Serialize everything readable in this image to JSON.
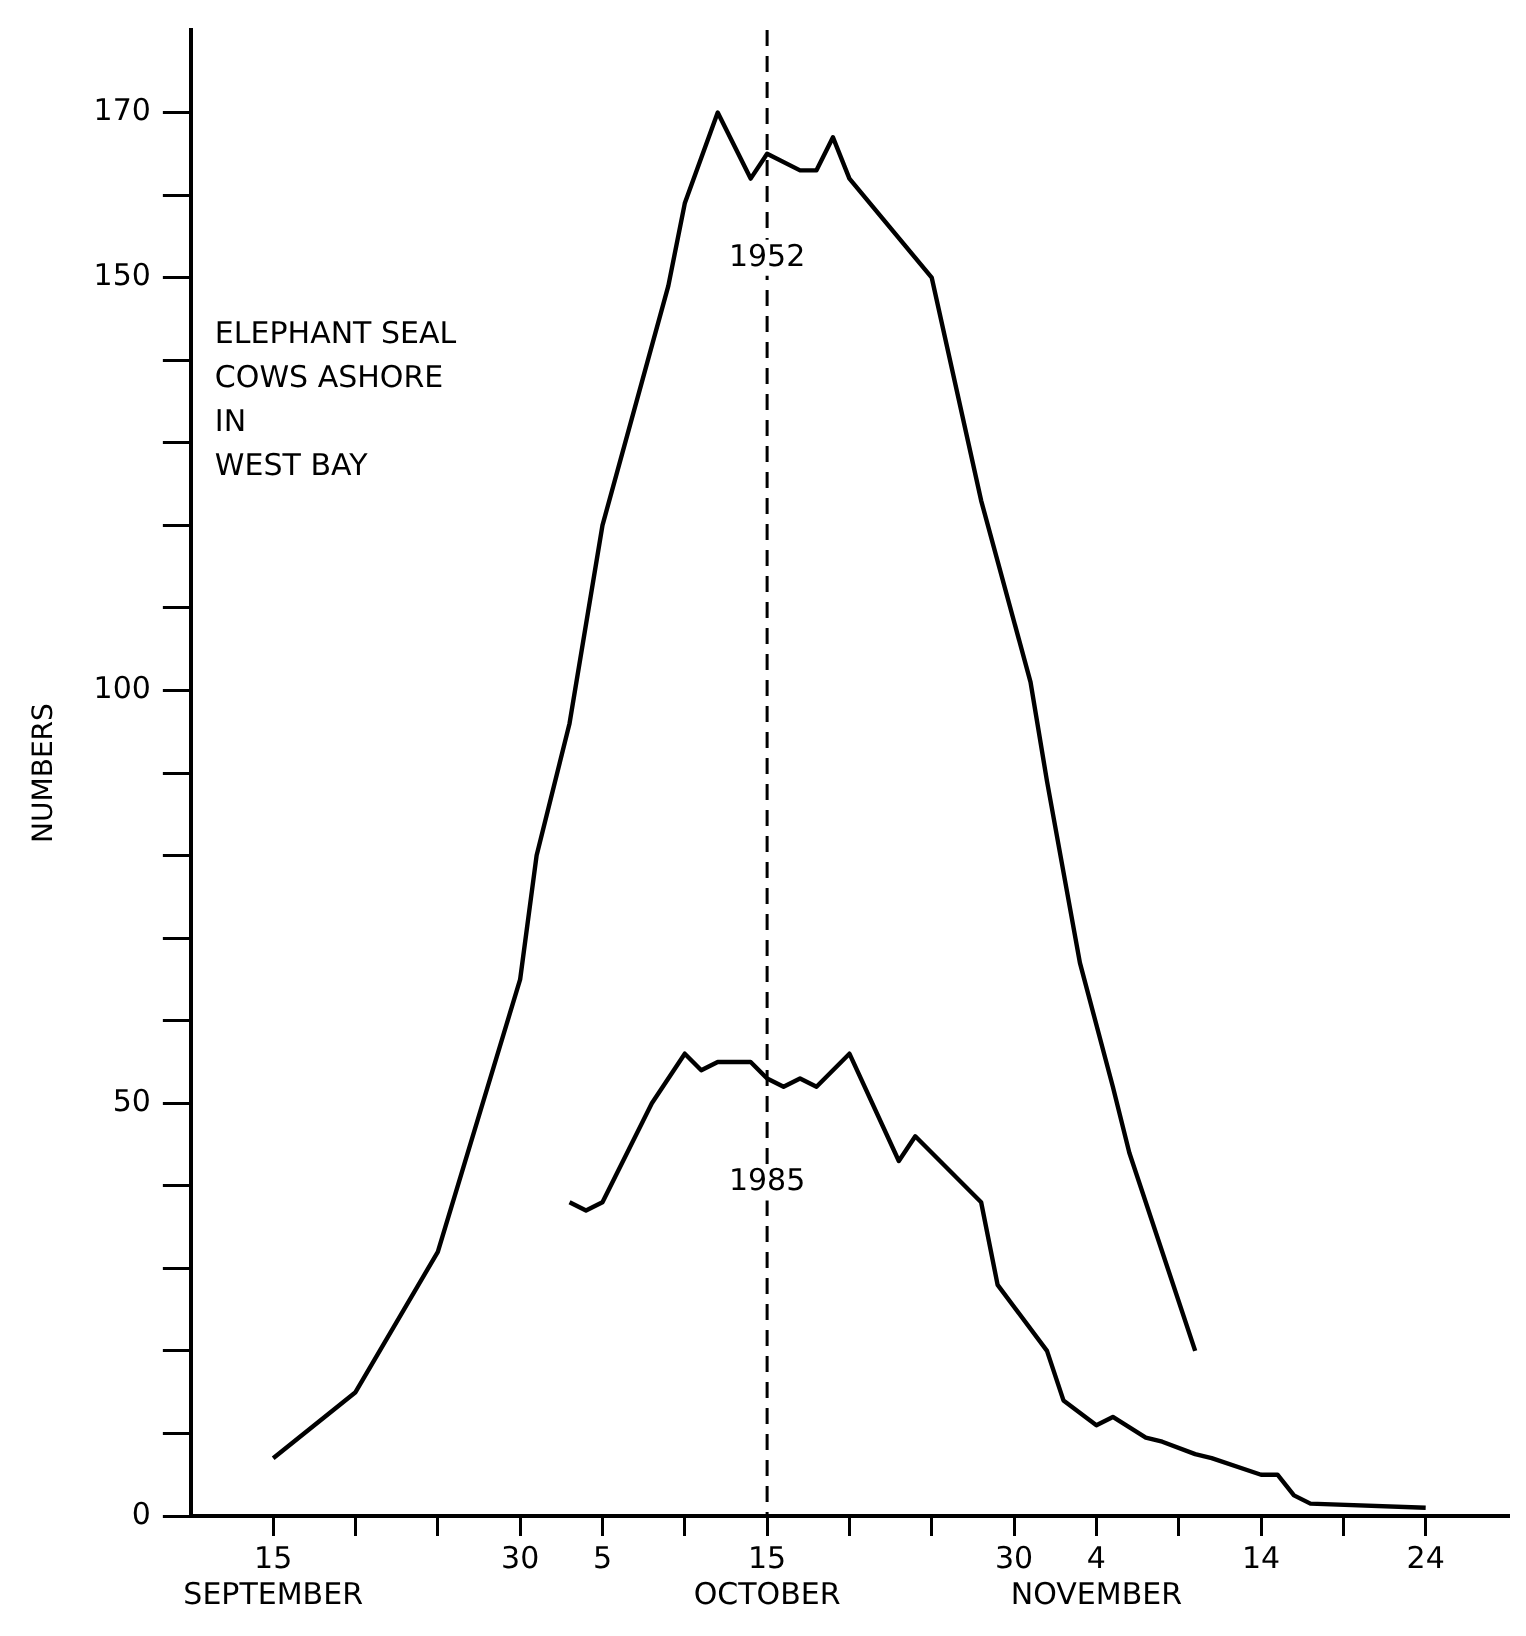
{
  "chart_data": {
    "type": "line",
    "ylabel": "NUMBERS",
    "annotations": [
      "ELEPHANT SEAL\nCOWS ASHORE\nIN\nWEST BAY"
    ],
    "series": [
      {
        "name": "1952",
        "color": "#000000",
        "x": [
          "--09-15",
          "--09-20",
          "--09-25",
          "--09-30",
          "--10-01",
          "--10-03",
          "--10-05",
          "--10-09",
          "--10-10",
          "--10-12",
          "--10-14",
          "--10-15",
          "--10-17",
          "--10-18",
          "--10-19",
          "--10-20",
          "--10-25",
          "--10-28",
          "--10-31",
          "--11-01",
          "--11-03",
          "--11-05",
          "--11-06",
          "--11-10"
        ],
        "values": [
          7,
          15,
          32,
          65,
          80,
          96,
          120,
          149,
          159,
          170,
          162,
          165,
          163,
          163,
          167,
          162,
          150,
          123,
          101,
          89,
          67,
          52,
          44,
          20
        ]
      },
      {
        "name": "1985",
        "color": "#000000",
        "x": [
          "--10-03",
          "--10-04",
          "--10-05",
          "--10-08",
          "--10-10",
          "--10-11",
          "--10-12",
          "--10-14",
          "--10-15",
          "--10-16",
          "--10-17",
          "--10-18",
          "--10-20",
          "--10-23",
          "--10-24",
          "--10-28",
          "--10-29",
          "--11-01",
          "--11-02",
          "--11-04",
          "--11-05",
          "--11-07",
          "--11-08",
          "--11-10",
          "--11-11",
          "--11-14",
          "--11-15",
          "--11-16",
          "--11-17",
          "--11-24"
        ],
        "values": [
          38,
          37,
          38,
          50,
          56,
          54,
          55,
          55,
          53,
          52,
          53,
          52,
          56,
          43,
          46,
          38,
          28,
          20,
          14,
          11,
          12,
          9.5,
          9,
          7.5,
          7,
          5,
          5,
          2.5,
          1.5,
          1
        ]
      }
    ],
    "ref_lines": [
      {
        "axis": "x",
        "value": "--10-15",
        "color": "#000000",
        "line_style": "dashed"
      }
    ],
    "xlim": [
      "--09-10",
      "--11-29"
    ],
    "xticks": [
      {
        "value": "--09-15",
        "label": "15\nSEPTEMBER"
      },
      {
        "value": "--09-20",
        "label": null
      },
      {
        "value": "--09-25",
        "label": null
      },
      {
        "value": "--09-30",
        "label": "30"
      },
      {
        "value": "--10-05",
        "label": "5"
      },
      {
        "value": "--10-10",
        "label": null
      },
      {
        "value": "--10-15",
        "label": "15\nOCTOBER"
      },
      {
        "value": "--10-20",
        "label": null
      },
      {
        "value": "--10-25",
        "label": null
      },
      {
        "value": "--10-30",
        "label": "30"
      },
      {
        "value": "--11-04",
        "label": "4\nNOVEMBER"
      },
      {
        "value": "--11-09",
        "label": null
      },
      {
        "value": "--11-14",
        "label": "14"
      },
      {
        "value": "--11-19",
        "label": null
      },
      {
        "value": "--11-24",
        "label": "24"
      }
    ],
    "ylim": [
      0,
      180
    ],
    "yticks": [
      0,
      {
        "value": 10,
        "label": null
      },
      {
        "value": 20,
        "label": null
      },
      {
        "value": 30,
        "label": null
      },
      {
        "value": 40,
        "label": null
      },
      50,
      {
        "value": 60,
        "label": null
      },
      {
        "value": 70,
        "label": null
      },
      {
        "value": 80,
        "label": null
      },
      {
        "value": 90,
        "label": null
      },
      100,
      {
        "value": 110,
        "label": null
      },
      {
        "value": 120,
        "label": null
      },
      {
        "value": 130,
        "label": null
      },
      {
        "value": 140,
        "label": null
      },
      150,
      {
        "value": 160,
        "label": null
      },
      170
    ],
    "grid": false,
    "legend": false,
    "marker": "none",
    "line_style": "solid"
  }
}
